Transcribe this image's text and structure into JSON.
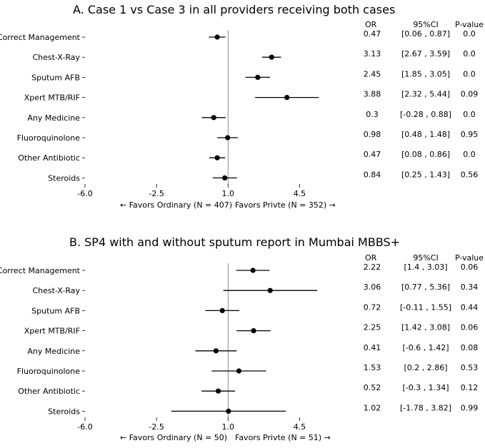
{
  "chart_data": [
    {
      "type": "forest",
      "title": "A. Case 1 vs Case 3 in all providers receiving both cases",
      "xlabel_left": "←  Favors Ordinary (N = 407)",
      "xlabel_right": "Favors Privte  (N = 352) →",
      "xlim": [
        -6.0,
        7.7
      ],
      "xticks": [
        "-6.0",
        "-2.5",
        "1.0",
        "4.5"
      ],
      "xtick_values": [
        -6.0,
        -2.5,
        1.0,
        4.5
      ],
      "reference_line": 1.0,
      "table_headers": [
        "OR",
        "95%CI",
        "P-value"
      ],
      "rows": [
        {
          "label": "Correct Management",
          "or": 0.47,
          "ci": [
            0.06,
            0.87
          ],
          "or_text": "0.47",
          "ci_text": "[0.06 , 0.87]",
          "p_text": "0.0"
        },
        {
          "label": "Chest-X-Ray",
          "or": 3.13,
          "ci": [
            2.67,
            3.59
          ],
          "or_text": "3.13",
          "ci_text": "[2.67 , 3.59]",
          "p_text": "0.0"
        },
        {
          "label": "Sputum AFB",
          "or": 2.45,
          "ci": [
            1.85,
            3.05
          ],
          "or_text": "2.45",
          "ci_text": "[1.85 , 3.05]",
          "p_text": "0.0"
        },
        {
          "label": "Xpert MTB/RIF",
          "or": 3.88,
          "ci": [
            2.32,
            5.44
          ],
          "or_text": "3.88",
          "ci_text": "[2.32 , 5.44]",
          "p_text": "0.09"
        },
        {
          "label": "Any Medicine",
          "or": 0.3,
          "ci": [
            -0.28,
            0.88
          ],
          "or_text": "0.3",
          "ci_text": "[-0.28 , 0.88]",
          "p_text": "0.0"
        },
        {
          "label": "Fluoroquinolone",
          "or": 0.98,
          "ci": [
            0.48,
            1.48
          ],
          "or_text": "0.98",
          "ci_text": "[0.48 , 1.48]",
          "p_text": "0.95"
        },
        {
          "label": "Other Antibiotic",
          "or": 0.47,
          "ci": [
            0.08,
            0.86
          ],
          "or_text": "0.47",
          "ci_text": "[0.08 , 0.86]",
          "p_text": "0.0"
        },
        {
          "label": "Steroids",
          "or": 0.84,
          "ci": [
            0.25,
            1.43
          ],
          "or_text": "0.84",
          "ci_text": "[0.25 , 1.43]",
          "p_text": "0.56"
        }
      ]
    },
    {
      "type": "forest",
      "title": "B. SP4 with and without sputum report in Mumbai MBBS+",
      "xlabel_left": "←  Favors Ordinary (N = 50)",
      "xlabel_right": "Favors Privte  (N = 51) →",
      "xlim": [
        -6.0,
        7.7
      ],
      "xticks": [
        "-6.0",
        "-2.5",
        "1.0",
        "4.5"
      ],
      "xtick_values": [
        -6.0,
        -2.5,
        1.0,
        4.5
      ],
      "reference_line": 1.0,
      "table_headers": [
        "OR",
        "95%CI",
        "P-value"
      ],
      "rows": [
        {
          "label": "Correct Management",
          "or": 2.22,
          "ci": [
            1.4,
            3.03
          ],
          "or_text": "2.22",
          "ci_text": "[1.4 , 3.03]",
          "p_text": "0.06"
        },
        {
          "label": "Chest-X-Ray",
          "or": 3.06,
          "ci": [
            0.77,
            5.36
          ],
          "or_text": "3.06",
          "ci_text": "[0.77 , 5.36]",
          "p_text": "0.34"
        },
        {
          "label": "Sputum AFB",
          "or": 0.72,
          "ci": [
            -0.11,
            1.55
          ],
          "or_text": "0.72",
          "ci_text": "[-0.11 , 1.55]",
          "p_text": "0.44"
        },
        {
          "label": "Xpert MTB/RIF",
          "or": 2.25,
          "ci": [
            1.42,
            3.08
          ],
          "or_text": "2.25",
          "ci_text": "[1.42 , 3.08]",
          "p_text": "0.06"
        },
        {
          "label": "Any Medicine",
          "or": 0.41,
          "ci": [
            -0.6,
            1.42
          ],
          "or_text": "0.41",
          "ci_text": "[-0.6 , 1.42]",
          "p_text": "0.08"
        },
        {
          "label": "Fluoroquinolone",
          "or": 1.53,
          "ci": [
            0.2,
            2.86
          ],
          "or_text": "1.53",
          "ci_text": "[0.2 , 2.86]",
          "p_text": "0.53"
        },
        {
          "label": "Other Antibiotic",
          "or": 0.52,
          "ci": [
            -0.3,
            1.34
          ],
          "or_text": "0.52",
          "ci_text": "[-0.3 , 1.34]",
          "p_text": "0.12"
        },
        {
          "label": "Steroids",
          "or": 1.02,
          "ci": [
            -1.78,
            3.82
          ],
          "or_text": "1.02",
          "ci_text": "[-1.78 , 3.82]",
          "p_text": "0.99"
        }
      ]
    }
  ],
  "colors": {
    "marker": "#000000",
    "reference_line": "#808080",
    "text": "#000000"
  }
}
